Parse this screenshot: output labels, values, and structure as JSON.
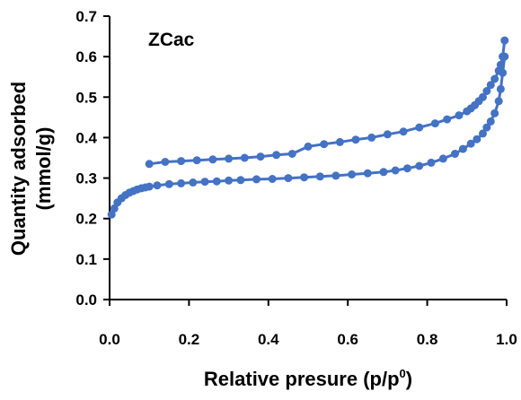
{
  "chart_data": {
    "type": "line",
    "label": "ZCac",
    "xlabel_main": "Relative presure (p/p",
    "xlabel_sup": "0",
    "xlabel_close": ")",
    "ylabel_line1": "Quantity adsorbed",
    "ylabel_line2": "(mmol/g)",
    "xlim": [
      0.0,
      1.0
    ],
    "ylim": [
      0.0,
      0.7
    ],
    "xticks": [
      "0.0",
      "0.2",
      "0.4",
      "0.6",
      "0.8",
      "1.0"
    ],
    "yticks": [
      "0.0",
      "0.1",
      "0.2",
      "0.3",
      "0.4",
      "0.5",
      "0.6",
      "0.7"
    ],
    "grid": false,
    "series_color": "#4472C4",
    "series": [
      {
        "name": "",
        "x": [
          0.005,
          0.012,
          0.02,
          0.03,
          0.04,
          0.05,
          0.06,
          0.07,
          0.08,
          0.09,
          0.1,
          0.12,
          0.15,
          0.18,
          0.21,
          0.24,
          0.27,
          0.3,
          0.33,
          0.37,
          0.41,
          0.45,
          0.49,
          0.53,
          0.57,
          0.61,
          0.65,
          0.69,
          0.72,
          0.75,
          0.78,
          0.81,
          0.84,
          0.87,
          0.89,
          0.91,
          0.925,
          0.94,
          0.95,
          0.96,
          0.97,
          0.98,
          0.985,
          0.99,
          0.995
        ],
        "y": [
          0.21,
          0.225,
          0.24,
          0.25,
          0.258,
          0.264,
          0.268,
          0.272,
          0.275,
          0.277,
          0.279,
          0.282,
          0.285,
          0.287,
          0.289,
          0.291,
          0.292,
          0.294,
          0.295,
          0.297,
          0.298,
          0.3,
          0.302,
          0.304,
          0.306,
          0.309,
          0.312,
          0.315,
          0.319,
          0.324,
          0.33,
          0.338,
          0.348,
          0.36,
          0.372,
          0.385,
          0.396,
          0.41,
          0.425,
          0.44,
          0.46,
          0.49,
          0.52,
          0.56,
          0.6
        ]
      },
      {
        "name": "",
        "x": [
          0.995,
          0.99,
          0.985,
          0.98,
          0.97,
          0.96,
          0.95,
          0.94,
          0.93,
          0.92,
          0.91,
          0.9,
          0.88,
          0.85,
          0.82,
          0.78,
          0.74,
          0.7,
          0.66,
          0.62,
          0.58,
          0.54,
          0.5,
          0.46,
          0.42,
          0.38,
          0.34,
          0.3,
          0.26,
          0.22,
          0.18,
          0.14,
          0.1
        ],
        "y": [
          0.64,
          0.6,
          0.58,
          0.565,
          0.545,
          0.53,
          0.515,
          0.5,
          0.49,
          0.48,
          0.472,
          0.465,
          0.455,
          0.445,
          0.435,
          0.425,
          0.415,
          0.408,
          0.4,
          0.395,
          0.389,
          0.384,
          0.378,
          0.36,
          0.357,
          0.353,
          0.35,
          0.348,
          0.346,
          0.344,
          0.342,
          0.34,
          0.335
        ]
      }
    ]
  }
}
